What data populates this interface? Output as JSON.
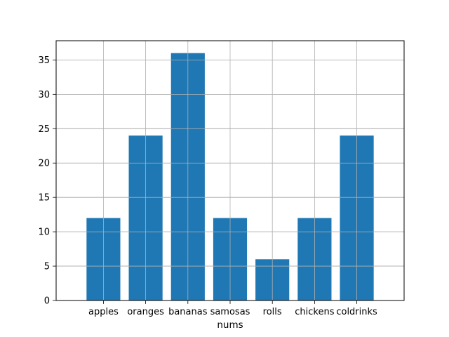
{
  "chart_data": {
    "type": "bar",
    "categories": [
      "apples",
      "oranges",
      "bananas",
      "samosas",
      "rolls",
      "chickens",
      "coldrinks"
    ],
    "values": [
      12,
      24,
      36,
      12,
      6,
      12,
      24
    ],
    "title": "",
    "xlabel": "nums",
    "ylabel": "",
    "ylim": [
      0,
      37.8
    ],
    "yticks": [
      0,
      5,
      10,
      15,
      20,
      25,
      30,
      35
    ],
    "grid": true,
    "bar_color": "#1f77b4",
    "grid_color": "#b0b0b0"
  }
}
